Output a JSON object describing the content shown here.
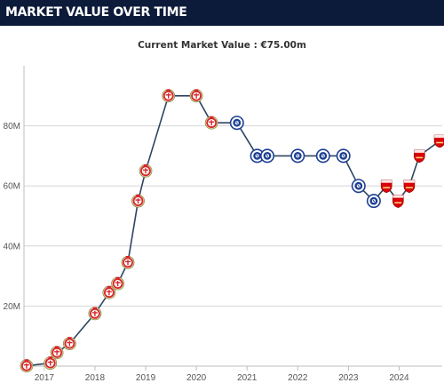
{
  "header": {
    "title": "MARKET VALUE OVER TIME"
  },
  "chart_data": {
    "type": "line",
    "subtitle": "Current Market Value : €75.00m",
    "xlabel": "",
    "ylabel": "",
    "xlim": [
      2016.6,
      2024.85
    ],
    "ylim": [
      0,
      100
    ],
    "y_ticks": [
      {
        "value": 20,
        "label": "20M"
      },
      {
        "value": 40,
        "label": "40M"
      },
      {
        "value": 60,
        "label": "60M"
      },
      {
        "value": 80,
        "label": "80M"
      }
    ],
    "x_ticks": [
      {
        "value": 2017,
        "label": "2017"
      },
      {
        "value": 2018,
        "label": "2018"
      },
      {
        "value": 2019,
        "label": "2019"
      },
      {
        "value": 2020,
        "label": "2020"
      },
      {
        "value": 2021,
        "label": "2021"
      },
      {
        "value": 2022,
        "label": "2022"
      },
      {
        "value": 2023,
        "label": "2023"
      },
      {
        "value": 2024,
        "label": "2024"
      }
    ],
    "grid": "horizontal",
    "line_color": "#2e4460",
    "club_colors": {
      "leverkusen": "#d8252b",
      "chelsea": "#1d3f92",
      "arsenal": "#db0007"
    },
    "points": [
      {
        "x": 2016.65,
        "y": 0.1,
        "club": "leverkusen"
      },
      {
        "x": 2017.12,
        "y": 1,
        "club": "leverkusen"
      },
      {
        "x": 2017.25,
        "y": 4.5,
        "club": "leverkusen"
      },
      {
        "x": 2017.5,
        "y": 7.5,
        "club": "leverkusen"
      },
      {
        "x": 2018.0,
        "y": 17.5,
        "club": "leverkusen"
      },
      {
        "x": 2018.28,
        "y": 24.5,
        "club": "leverkusen"
      },
      {
        "x": 2018.45,
        "y": 27.5,
        "club": "leverkusen"
      },
      {
        "x": 2018.65,
        "y": 34.5,
        "club": "leverkusen"
      },
      {
        "x": 2018.85,
        "y": 55,
        "club": "leverkusen"
      },
      {
        "x": 2019.0,
        "y": 65,
        "club": "leverkusen"
      },
      {
        "x": 2019.45,
        "y": 90,
        "club": "leverkusen"
      },
      {
        "x": 2020.0,
        "y": 90,
        "club": "leverkusen"
      },
      {
        "x": 2020.3,
        "y": 81,
        "club": "leverkusen"
      },
      {
        "x": 2020.8,
        "y": 81,
        "club": "chelsea"
      },
      {
        "x": 2021.2,
        "y": 70,
        "club": "chelsea"
      },
      {
        "x": 2021.4,
        "y": 70,
        "club": "chelsea"
      },
      {
        "x": 2022.0,
        "y": 70,
        "club": "chelsea"
      },
      {
        "x": 2022.5,
        "y": 70,
        "club": "chelsea"
      },
      {
        "x": 2022.9,
        "y": 70,
        "club": "chelsea"
      },
      {
        "x": 2023.2,
        "y": 60,
        "club": "chelsea"
      },
      {
        "x": 2023.5,
        "y": 55,
        "club": "chelsea"
      },
      {
        "x": 2023.75,
        "y": 60,
        "club": "arsenal"
      },
      {
        "x": 2023.98,
        "y": 55,
        "club": "arsenal"
      },
      {
        "x": 2024.2,
        "y": 60,
        "club": "arsenal"
      },
      {
        "x": 2024.4,
        "y": 70,
        "club": "arsenal"
      },
      {
        "x": 2024.8,
        "y": 75,
        "club": "arsenal"
      }
    ]
  }
}
